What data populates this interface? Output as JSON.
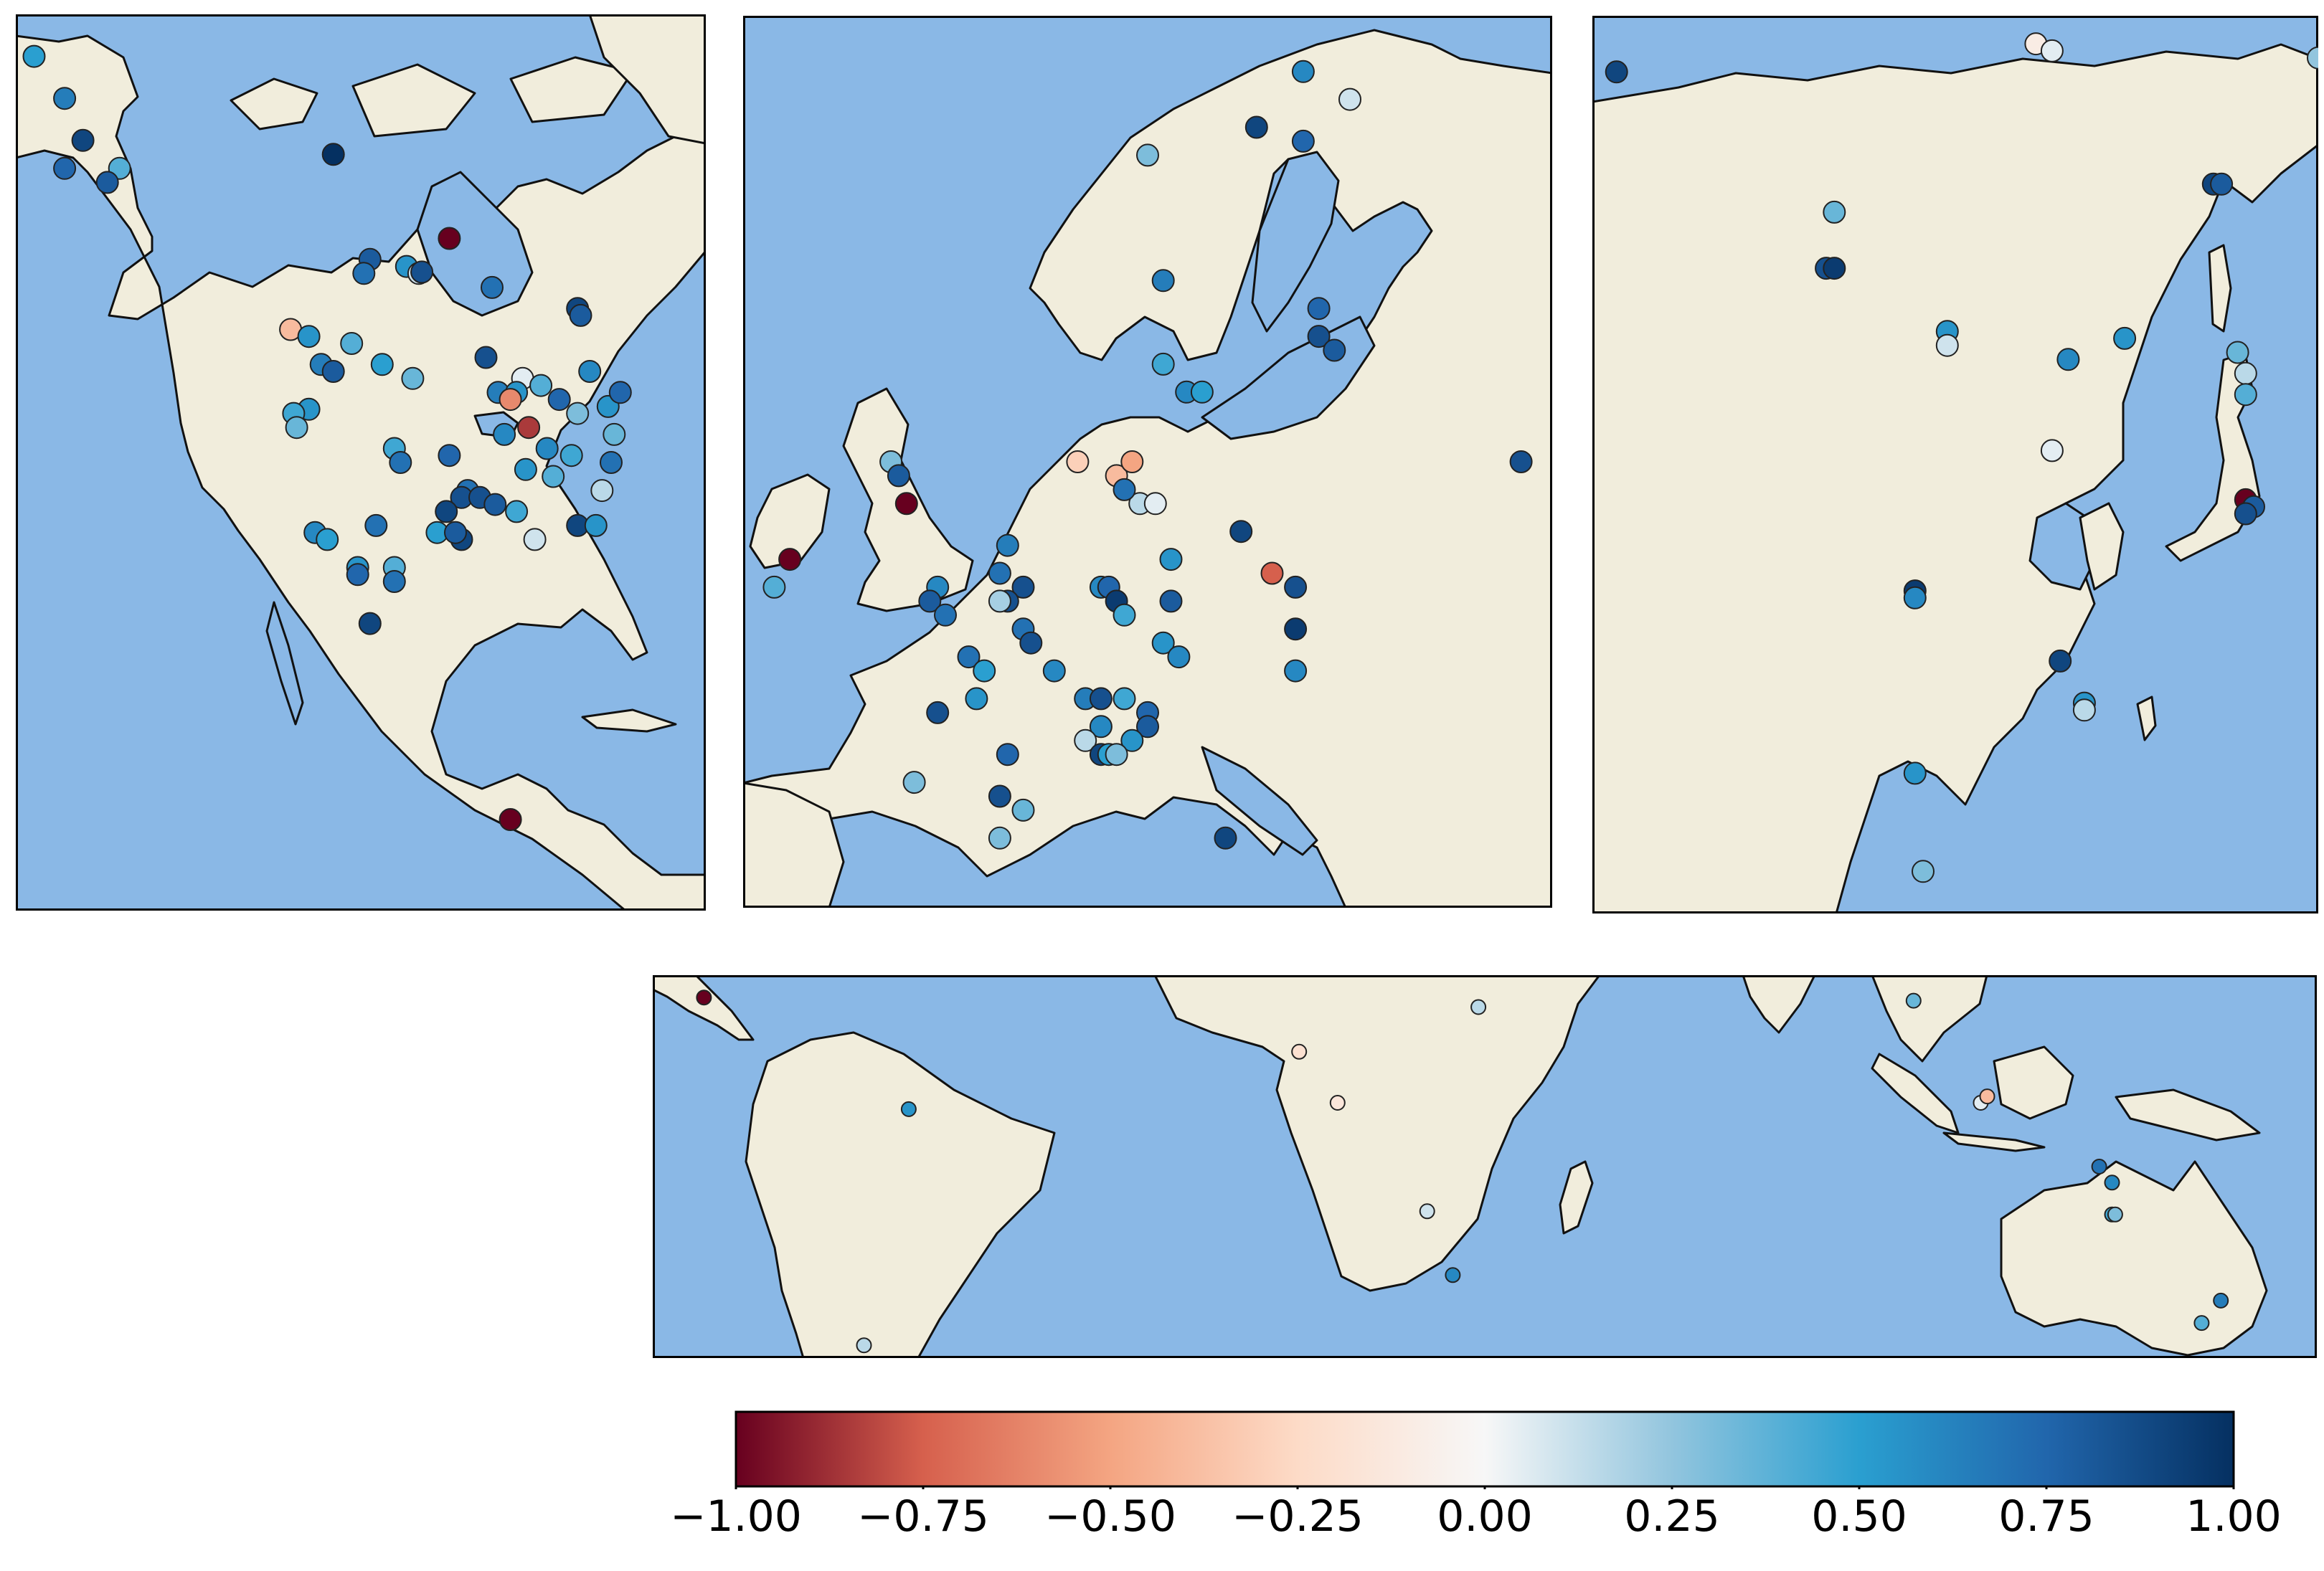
{
  "colors": {
    "ocean": "#8ab8e6",
    "land": "#f1eddc",
    "coast": "#111111",
    "marker_edge": "#222222"
  },
  "colormap": {
    "name": "RdBu",
    "vmin": -1.0,
    "vmax": 1.0,
    "stops": [
      [
        -1.0,
        "#67001f"
      ],
      [
        -0.75,
        "#d6604d"
      ],
      [
        -0.5,
        "#f4a582"
      ],
      [
        -0.25,
        "#fddbc7"
      ],
      [
        0.0,
        "#f7f7f7"
      ],
      [
        0.25,
        "#92c5de"
      ],
      [
        0.5,
        "#2a9fd0"
      ],
      [
        0.75,
        "#2166ac"
      ],
      [
        1.0,
        "#053061"
      ]
    ],
    "tick_labels": [
      "−1.00",
      "−0.75",
      "−0.50",
      "−0.25",
      "0.00",
      "0.25",
      "0.50",
      "0.75",
      "1.00"
    ]
  },
  "maps": [
    {
      "region": "North America",
      "stations": [
        {
          "lon": -165,
          "lat": 69,
          "v": 0.5
        },
        {
          "lon": -160,
          "lat": 66,
          "v": 0.65
        },
        {
          "lon": -157,
          "lat": 63,
          "v": 0.9
        },
        {
          "lon": -160,
          "lat": 61,
          "v": 0.75
        },
        {
          "lon": -151,
          "lat": 61,
          "v": 0.4
        },
        {
          "lon": -153,
          "lat": 60,
          "v": 0.8
        },
        {
          "lon": -116,
          "lat": 62,
          "v": 1.0
        },
        {
          "lon": -110,
          "lat": 54.5,
          "v": 0.8
        },
        {
          "lon": -111,
          "lat": 53.5,
          "v": 0.7
        },
        {
          "lon": -104,
          "lat": 54,
          "v": 0.55
        },
        {
          "lon": -102,
          "lat": 53.5,
          "v": 0.1
        },
        {
          "lon": -101.5,
          "lat": 53.6,
          "v": 0.85
        },
        {
          "lon": -97,
          "lat": 56,
          "v": -1.0
        },
        {
          "lon": -90,
          "lat": 52.5,
          "v": 0.7
        },
        {
          "lon": -76,
          "lat": 51,
          "v": 0.9
        },
        {
          "lon": -75.5,
          "lat": 50.5,
          "v": 0.8
        },
        {
          "lon": -123,
          "lat": 49.5,
          "v": -0.4
        },
        {
          "lon": -120,
          "lat": 49,
          "v": 0.55
        },
        {
          "lon": -113,
          "lat": 48.5,
          "v": 0.4
        },
        {
          "lon": -108,
          "lat": 47,
          "v": 0.5
        },
        {
          "lon": -103,
          "lat": 46,
          "v": 0.35
        },
        {
          "lon": -91,
          "lat": 47.5,
          "v": 0.85
        },
        {
          "lon": -118,
          "lat": 47,
          "v": 0.65
        },
        {
          "lon": -116,
          "lat": 46.5,
          "v": 0.8
        },
        {
          "lon": -89,
          "lat": 45,
          "v": 0.65
        },
        {
          "lon": -85,
          "lat": 46,
          "v": 0.05
        },
        {
          "lon": -86,
          "lat": 45,
          "v": 0.55
        },
        {
          "lon": -87,
          "lat": 44.5,
          "v": -0.6
        },
        {
          "lon": -82,
          "lat": 45.5,
          "v": 0.4
        },
        {
          "lon": -79,
          "lat": 44.5,
          "v": 0.75
        },
        {
          "lon": -76,
          "lat": 43.5,
          "v": 0.3
        },
        {
          "lon": -74,
          "lat": 46.5,
          "v": 0.6
        },
        {
          "lon": -71,
          "lat": 44,
          "v": 0.55
        },
        {
          "lon": -69,
          "lat": 45,
          "v": 0.75
        },
        {
          "lon": -70,
          "lat": 42,
          "v": 0.35
        },
        {
          "lon": -120,
          "lat": 43.8,
          "v": 0.55
        },
        {
          "lon": -122.5,
          "lat": 43.5,
          "v": 0.45
        },
        {
          "lon": -122,
          "lat": 42.5,
          "v": 0.35
        },
        {
          "lon": -84,
          "lat": 42.5,
          "v": -0.85
        },
        {
          "lon": -88,
          "lat": 42,
          "v": 0.6
        },
        {
          "lon": -81,
          "lat": 41,
          "v": 0.6
        },
        {
          "lon": -77,
          "lat": 40.5,
          "v": 0.45
        },
        {
          "lon": -70.5,
          "lat": 40,
          "v": 0.7
        },
        {
          "lon": -106,
          "lat": 41,
          "v": 0.45
        },
        {
          "lon": -105,
          "lat": 40,
          "v": 0.7
        },
        {
          "lon": -97,
          "lat": 40.5,
          "v": 0.75
        },
        {
          "lon": -84.5,
          "lat": 39.5,
          "v": 0.55
        },
        {
          "lon": -80,
          "lat": 39,
          "v": 0.4
        },
        {
          "lon": -72,
          "lat": 38,
          "v": 0.15
        },
        {
          "lon": -94,
          "lat": 38,
          "v": 0.7
        },
        {
          "lon": -95,
          "lat": 37.5,
          "v": 0.85
        },
        {
          "lon": -92,
          "lat": 37.5,
          "v": 0.85
        },
        {
          "lon": -97.5,
          "lat": 36.5,
          "v": 0.9
        },
        {
          "lon": -89.5,
          "lat": 37,
          "v": 0.8
        },
        {
          "lon": -86,
          "lat": 36.5,
          "v": 0.45
        },
        {
          "lon": -119,
          "lat": 35,
          "v": 0.6
        },
        {
          "lon": -117,
          "lat": 34.5,
          "v": 0.5
        },
        {
          "lon": -109,
          "lat": 35.5,
          "v": 0.7
        },
        {
          "lon": -99,
          "lat": 35,
          "v": 0.5
        },
        {
          "lon": -95,
          "lat": 34.5,
          "v": 0.9
        },
        {
          "lon": -96,
          "lat": 35,
          "v": 0.8
        },
        {
          "lon": -83,
          "lat": 34.5,
          "v": 0.1
        },
        {
          "lon": -76,
          "lat": 35.5,
          "v": 0.9
        },
        {
          "lon": -73,
          "lat": 35.5,
          "v": 0.55
        },
        {
          "lon": -112,
          "lat": 32.5,
          "v": 0.55
        },
        {
          "lon": -112,
          "lat": 32,
          "v": 0.75
        },
        {
          "lon": -106,
          "lat": 32.5,
          "v": 0.4
        },
        {
          "lon": -106,
          "lat": 31.5,
          "v": 0.7
        },
        {
          "lon": -110,
          "lat": 28.5,
          "v": 0.9
        },
        {
          "lon": -87,
          "lat": 14.5,
          "v": -1.0
        }
      ]
    },
    {
      "region": "Europe",
      "stations": [
        {
          "lon": 24,
          "lat": 70,
          "v": 0.6
        },
        {
          "lon": 27,
          "lat": 69,
          "v": 0.1
        },
        {
          "lon": 21,
          "lat": 68,
          "v": 0.9
        },
        {
          "lon": 24,
          "lat": 67.5,
          "v": 0.75
        },
        {
          "lon": 14,
          "lat": 67,
          "v": 0.3
        },
        {
          "lon": 15,
          "lat": 62.5,
          "v": 0.65
        },
        {
          "lon": 25,
          "lat": 61.5,
          "v": 0.75
        },
        {
          "lon": 25,
          "lat": 60.5,
          "v": 0.85
        },
        {
          "lon": 26,
          "lat": 60,
          "v": 0.8
        },
        {
          "lon": 15,
          "lat": 59.5,
          "v": 0.45
        },
        {
          "lon": 16.5,
          "lat": 58.5,
          "v": 0.6
        },
        {
          "lon": 17.5,
          "lat": 58.5,
          "v": 0.5
        },
        {
          "lon": 38,
          "lat": 56,
          "v": 0.85
        },
        {
          "lon": -2.5,
          "lat": 56,
          "v": 0.3
        },
        {
          "lon": -2,
          "lat": 55.5,
          "v": 0.8
        },
        {
          "lon": -1.5,
          "lat": 54.5,
          "v": -1.0
        },
        {
          "lon": -9,
          "lat": 52.5,
          "v": -1.0
        },
        {
          "lon": -10,
          "lat": 51.5,
          "v": 0.4
        },
        {
          "lon": 9.5,
          "lat": 56,
          "v": -0.3
        },
        {
          "lon": 12,
          "lat": 55.5,
          "v": -0.4
        },
        {
          "lon": 13,
          "lat": 56,
          "v": -0.5
        },
        {
          "lon": 13.5,
          "lat": 54.5,
          "v": 0.15
        },
        {
          "lon": 14.5,
          "lat": 54.5,
          "v": 0.05
        },
        {
          "lon": 12.5,
          "lat": 55,
          "v": 0.7
        },
        {
          "lon": 5,
          "lat": 53,
          "v": 0.65
        },
        {
          "lon": 4.5,
          "lat": 52,
          "v": 0.7
        },
        {
          "lon": 6,
          "lat": 51.5,
          "v": 0.85
        },
        {
          "lon": 5,
          "lat": 51,
          "v": 0.85
        },
        {
          "lon": 4.5,
          "lat": 51,
          "v": 0.2
        },
        {
          "lon": 0.5,
          "lat": 51.5,
          "v": 0.6
        },
        {
          "lon": 0,
          "lat": 51,
          "v": 0.8
        },
        {
          "lon": 1,
          "lat": 50.5,
          "v": 0.7
        },
        {
          "lon": 6,
          "lat": 50,
          "v": 0.7
        },
        {
          "lon": 6.5,
          "lat": 49.5,
          "v": 0.85
        },
        {
          "lon": 11,
          "lat": 51.5,
          "v": 0.6
        },
        {
          "lon": 11.5,
          "lat": 51.5,
          "v": 0.75
        },
        {
          "lon": 12,
          "lat": 51,
          "v": 0.95
        },
        {
          "lon": 12.5,
          "lat": 50.5,
          "v": 0.45
        },
        {
          "lon": 15.5,
          "lat": 51,
          "v": 0.8
        },
        {
          "lon": 15.5,
          "lat": 52.5,
          "v": 0.55
        },
        {
          "lon": 20,
          "lat": 53.5,
          "v": 0.9
        },
        {
          "lon": 22,
          "lat": 52,
          "v": -0.75
        },
        {
          "lon": 23.5,
          "lat": 51.5,
          "v": 0.85
        },
        {
          "lon": 23.5,
          "lat": 50,
          "v": 0.95
        },
        {
          "lon": 23.5,
          "lat": 48.5,
          "v": 0.6
        },
        {
          "lon": 15,
          "lat": 49.5,
          "v": 0.55
        },
        {
          "lon": 16,
          "lat": 49,
          "v": 0.6
        },
        {
          "lon": 2.5,
          "lat": 49,
          "v": 0.7
        },
        {
          "lon": 3.5,
          "lat": 48.5,
          "v": 0.5
        },
        {
          "lon": 8,
          "lat": 48.5,
          "v": 0.6
        },
        {
          "lon": 10,
          "lat": 47.5,
          "v": 0.65
        },
        {
          "lon": 11,
          "lat": 47.5,
          "v": 0.85
        },
        {
          "lon": 12.5,
          "lat": 47.5,
          "v": 0.45
        },
        {
          "lon": 11,
          "lat": 46.5,
          "v": 0.6
        },
        {
          "lon": 14,
          "lat": 47,
          "v": 0.75
        },
        {
          "lon": 14,
          "lat": 46.5,
          "v": 0.8
        },
        {
          "lon": 13,
          "lat": 46,
          "v": 0.55
        },
        {
          "lon": 0.5,
          "lat": 47,
          "v": 0.85
        },
        {
          "lon": 3,
          "lat": 47.5,
          "v": 0.55
        },
        {
          "lon": 5,
          "lat": 45.5,
          "v": 0.75
        },
        {
          "lon": 10,
          "lat": 46,
          "v": 0.15
        },
        {
          "lon": 11,
          "lat": 45.5,
          "v": 0.9
        },
        {
          "lon": 11.5,
          "lat": 45.5,
          "v": 0.5
        },
        {
          "lon": 12,
          "lat": 45.5,
          "v": 0.3
        },
        {
          "lon": -1,
          "lat": 44.5,
          "v": 0.3
        },
        {
          "lon": 4.5,
          "lat": 44,
          "v": 0.85
        },
        {
          "lon": 6,
          "lat": 43.5,
          "v": 0.35
        },
        {
          "lon": 4.5,
          "lat": 42.5,
          "v": 0.3
        },
        {
          "lon": 19,
          "lat": 42.5,
          "v": 0.9
        }
      ]
    },
    {
      "region": "Asia",
      "stations": [
        {
          "lon": 63,
          "lat": 70,
          "v": 0.9
        },
        {
          "lon": 115,
          "lat": 72,
          "v": -0.1
        },
        {
          "lon": 117,
          "lat": 71.5,
          "v": 0.05
        },
        {
          "lon": 150,
          "lat": 71,
          "v": 0.25
        },
        {
          "lon": 137,
          "lat": 62,
          "v": 0.9
        },
        {
          "lon": 138,
          "lat": 62,
          "v": 0.8
        },
        {
          "lon": 90,
          "lat": 60,
          "v": 0.35
        },
        {
          "lon": 89,
          "lat": 56,
          "v": 0.85
        },
        {
          "lon": 90,
          "lat": 56,
          "v": 0.95
        },
        {
          "lon": 104,
          "lat": 51.5,
          "v": 0.55
        },
        {
          "lon": 104,
          "lat": 50.5,
          "v": 0.1
        },
        {
          "lon": 119,
          "lat": 49.5,
          "v": 0.6
        },
        {
          "lon": 126,
          "lat": 51,
          "v": 0.55
        },
        {
          "lon": 140,
          "lat": 50,
          "v": 0.35
        },
        {
          "lon": 141,
          "lat": 48.5,
          "v": 0.15
        },
        {
          "lon": 141,
          "lat": 47,
          "v": 0.4
        },
        {
          "lon": 117,
          "lat": 43,
          "v": 0.05
        },
        {
          "lon": 141,
          "lat": 39.5,
          "v": -1.0
        },
        {
          "lon": 142,
          "lat": 39,
          "v": 0.8
        },
        {
          "lon": 141,
          "lat": 38.5,
          "v": 0.85
        },
        {
          "lon": 100,
          "lat": 33,
          "v": 0.95
        },
        {
          "lon": 100,
          "lat": 32.5,
          "v": 0.6
        },
        {
          "lon": 118,
          "lat": 28,
          "v": 0.9
        },
        {
          "lon": 121,
          "lat": 25,
          "v": 0.55
        },
        {
          "lon": 121,
          "lat": 24.5,
          "v": 0.15
        },
        {
          "lon": 100,
          "lat": 20,
          "v": 0.55
        },
        {
          "lon": 101,
          "lat": 13,
          "v": 0.3
        }
      ]
    },
    {
      "region": "Tropics",
      "stations": [
        {
          "lon": -87,
          "lat": 14.5,
          "v": -1.0
        },
        {
          "lon": -55,
          "lat": -3,
          "v": 0.55
        },
        {
          "lon": -62,
          "lat": -40,
          "v": 0.15
        },
        {
          "lon": 6,
          "lat": 6,
          "v": -0.2
        },
        {
          "lon": 34,
          "lat": 13,
          "v": 0.15
        },
        {
          "lon": 12,
          "lat": -2,
          "v": -0.15
        },
        {
          "lon": 26,
          "lat": -19,
          "v": 0.1
        },
        {
          "lon": 30,
          "lat": -29,
          "v": 0.6
        },
        {
          "lon": 102,
          "lat": 14,
          "v": 0.35
        },
        {
          "lon": 112.5,
          "lat": -2,
          "v": 0.05
        },
        {
          "lon": 113.5,
          "lat": -1,
          "v": -0.4
        },
        {
          "lon": 131,
          "lat": -12,
          "v": 0.7
        },
        {
          "lon": 133,
          "lat": -14.5,
          "v": 0.6
        },
        {
          "lon": 133,
          "lat": -19.5,
          "v": 0.45
        },
        {
          "lon": 133.5,
          "lat": -19.5,
          "v": 0.3
        },
        {
          "lon": 150,
          "lat": -33,
          "v": 0.65
        },
        {
          "lon": 147,
          "lat": -36.5,
          "v": 0.4
        }
      ]
    }
  ]
}
